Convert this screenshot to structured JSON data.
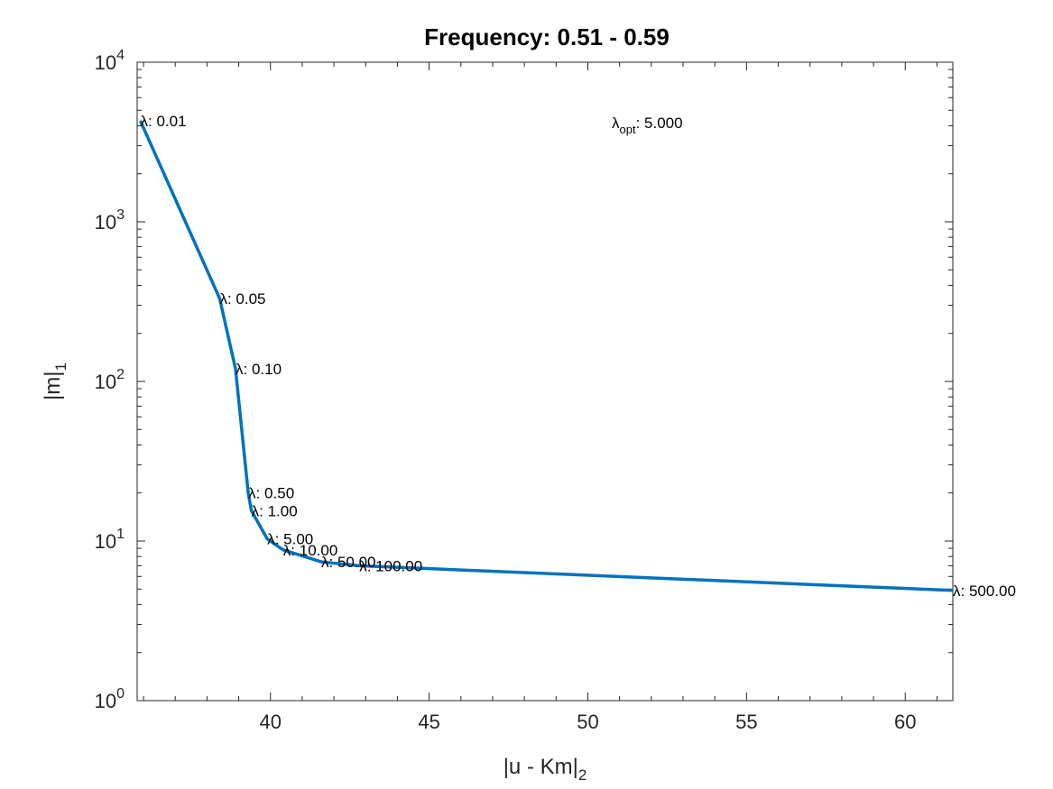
{
  "chart_data": {
    "type": "line",
    "title": "Frequency: 0.51 - 0.59",
    "xlabel": {
      "base": "|u - Km|",
      "sub": "2"
    },
    "ylabel": {
      "base": "|m|",
      "sub": "1"
    },
    "xlim": [
      35.8,
      61.5
    ],
    "ylim": [
      1,
      10000
    ],
    "yscale": "log",
    "grid": false,
    "x_ticks": [
      40,
      45,
      50,
      55,
      60
    ],
    "y_ticks": [
      {
        "value": 1,
        "base": "10",
        "exp": "0"
      },
      {
        "value": 10,
        "base": "10",
        "exp": "1"
      },
      {
        "value": 100,
        "base": "10",
        "exp": "2"
      },
      {
        "value": 1000,
        "base": "10",
        "exp": "3"
      },
      {
        "value": 10000,
        "base": "10",
        "exp": "4"
      }
    ],
    "series_color": "#0072BD",
    "points": [
      {
        "x": 35.9,
        "y": 4300,
        "label": "λ: 0.01"
      },
      {
        "x": 38.4,
        "y": 330,
        "label": "λ: 0.05"
      },
      {
        "x": 38.9,
        "y": 120,
        "label": "λ: 0.10"
      },
      {
        "x": 39.3,
        "y": 20,
        "label": "λ: 0.50"
      },
      {
        "x": 39.4,
        "y": 15.5,
        "label": "λ: 1.00"
      },
      {
        "x": 39.9,
        "y": 10.3,
        "label": "λ: 5.00"
      },
      {
        "x": 40.4,
        "y": 8.8,
        "label": "λ: 10.00"
      },
      {
        "x": 41.6,
        "y": 7.4,
        "label": "λ: 50.00"
      },
      {
        "x": 42.8,
        "y": 7.0,
        "label": "λ: 100.00"
      },
      {
        "x": 61.5,
        "y": 4.9,
        "label": "λ: 500.00"
      }
    ],
    "annotation": {
      "sym": "λ",
      "sub": "opt",
      "text": ": 5.000"
    }
  }
}
